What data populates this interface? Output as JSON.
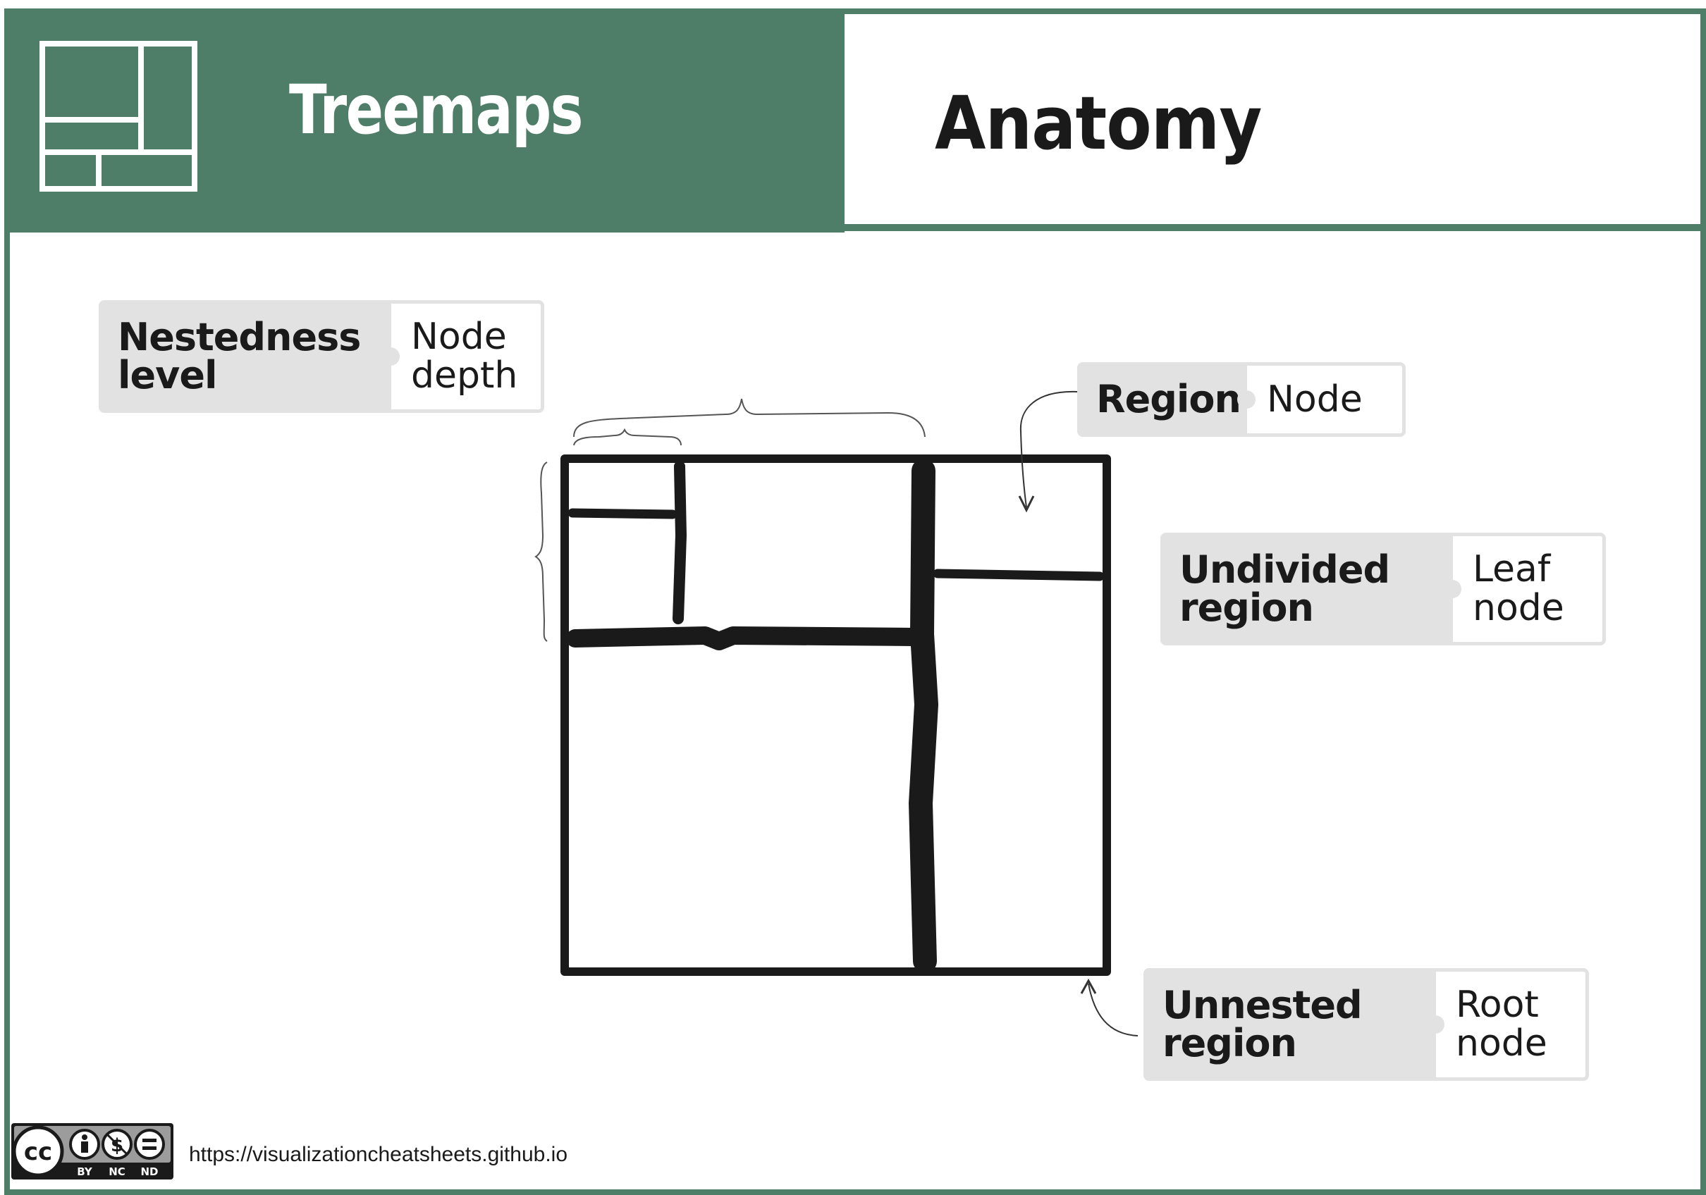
{
  "header": {
    "cheatsheet_title": "Treemaps",
    "section_title": "Anatomy",
    "icon": "treemap-icon"
  },
  "callouts": {
    "nestedness": {
      "term": "Nestedness\nlevel",
      "definition": "Node\ndepth"
    },
    "region": {
      "term": "Region",
      "definition": "Node"
    },
    "undivided": {
      "term": "Undivided\nregion",
      "definition": "Leaf\nnode"
    },
    "unnested": {
      "term": "Unnested\nregion",
      "definition": "Root\nnode"
    }
  },
  "footer": {
    "license_icon": "cc-by-nc-nd-icon",
    "license_labels": [
      "BY",
      "NC",
      "ND"
    ],
    "url": "https://visualizationcheatsheets.github.io"
  },
  "colors": {
    "accent": "#4e7d68",
    "callout_fill": "#e2e2e2",
    "ink": "#1a1a1a"
  }
}
